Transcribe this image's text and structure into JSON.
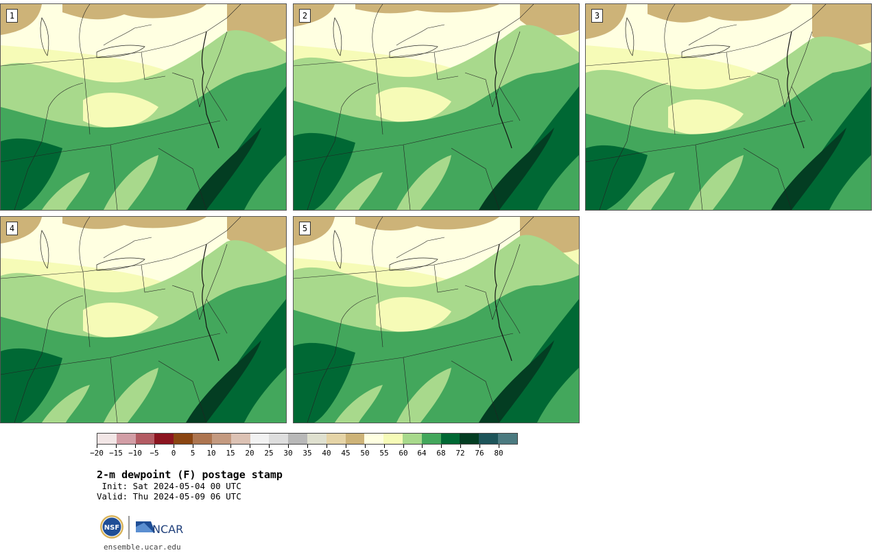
{
  "stamps": [
    {
      "number": "1"
    },
    {
      "number": "2"
    },
    {
      "number": "3"
    },
    {
      "number": "4"
    },
    {
      "number": "5"
    }
  ],
  "legend": {
    "colors": [
      "#f2e6e6",
      "#d29ea6",
      "#b35b63",
      "#8c1520",
      "#8a4512",
      "#ad7550",
      "#c49a80",
      "#dcc2b4",
      "#f2f2f2",
      "#dedede",
      "#b8b8b8",
      "#dfe0cf",
      "#e5d4a7",
      "#cdb378",
      "#ffffe1",
      "#f6fbb7",
      "#a8d98c",
      "#43a75c",
      "#006834",
      "#033d22",
      "#1d5459",
      "#4b7a80"
    ],
    "tick_labels": [
      "−20",
      "−15",
      "−10",
      "−5",
      "0",
      "5",
      "10",
      "15",
      "20",
      "25",
      "30",
      "35",
      "40",
      "45",
      "50",
      "55",
      "60",
      "64",
      "68",
      "72",
      "76",
      "80"
    ]
  },
  "title": "2-m dewpoint (F) postage stamp",
  "init_line": " Init: Sat 2024-05-04 00 UTC",
  "valid_line": "Valid: Thu 2024-05-09 06 UTC",
  "logos": {
    "nsf_text": "NSF",
    "ncar_text": "NCAR"
  },
  "website": "ensemble.ucar.edu",
  "palette": {
    "tan": "#cdb378",
    "lightyellow": "#ffffe1",
    "yellow": "#f6fbb7",
    "lightgreen": "#a8d98c",
    "green": "#43a75c",
    "darkgreen": "#006834",
    "darkestgreen": "#033d22"
  }
}
